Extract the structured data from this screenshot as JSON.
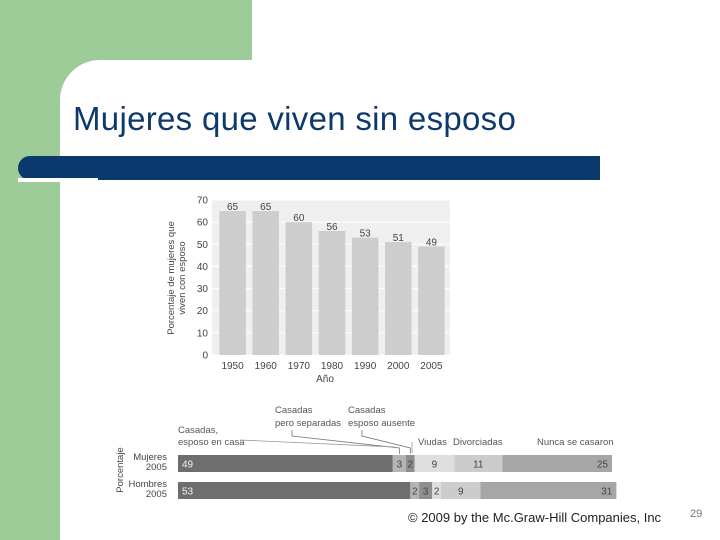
{
  "slide": {
    "title": "Mujeres que viven sin esposo",
    "footer": "© 2009 by the Mc.Graw-Hill Companies, Inc",
    "slide_number": "29",
    "colors": {
      "title": "#0e3a6b",
      "bar": "#0a3a6b",
      "accent_green": "#9dcc98"
    }
  },
  "chart_data": [
    {
      "type": "bar",
      "ylabel": "Porcentaje de mujeres que viven con esposo",
      "xlabel": "Año",
      "categories": [
        "1950",
        "1960",
        "1970",
        "1980",
        "1990",
        "2000",
        "2005"
      ],
      "values": [
        65,
        65,
        60,
        56,
        53,
        51,
        49
      ],
      "ylim": [
        0,
        70
      ],
      "yticks": [
        "0",
        "10",
        "20",
        "30",
        "40",
        "50",
        "60",
        "70"
      ],
      "grid": true,
      "bar_color": "#cdcdcd"
    },
    {
      "type": "bar",
      "orientation": "horizontal",
      "stacked": true,
      "ylabel": "Porcentaje",
      "rows": [
        {
          "label_line1": "Mujeres",
          "label_line2": "2005",
          "values": [
            49,
            3,
            2,
            9,
            11,
            25
          ]
        },
        {
          "label_line1": "Hombres",
          "label_line2": "2005",
          "values": [
            53,
            2,
            3,
            2,
            9,
            31
          ]
        }
      ],
      "series": [
        {
          "name_line1": "Casadas,",
          "name_line2": "esposo en casa",
          "color": "#6e6e6e"
        },
        {
          "name_line1": "Casadas",
          "name_line2": "pero separadas",
          "color": "#b4b4b4"
        },
        {
          "name_line1": "Casadas",
          "name_line2": "esposo ausente",
          "color": "#8e8e8e"
        },
        {
          "name_line1": "Viudas",
          "name_line2": "",
          "color": "#dedede"
        },
        {
          "name_line1": "Divorciadas",
          "name_line2": "",
          "color": "#cccccc"
        },
        {
          "name_line1": "Nunca se casaron",
          "name_line2": "",
          "color": "#a6a6a6"
        }
      ]
    }
  ]
}
